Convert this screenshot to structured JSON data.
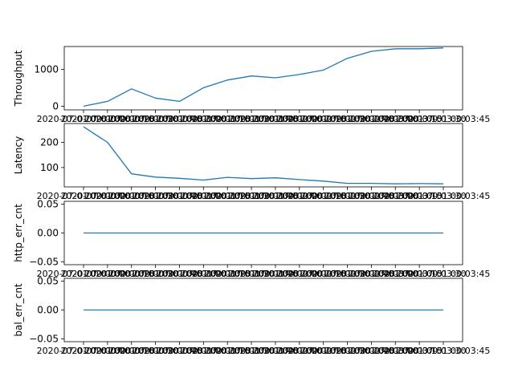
{
  "chart_data": [
    {
      "type": "line",
      "ylabel": "Throughput",
      "x": [
        "2020-07-01 00:00:00",
        "2020-07-01 00:00:15",
        "2020-07-01 00:00:30",
        "2020-07-01 00:00:45",
        "2020-07-01 00:01:00",
        "2020-07-01 00:01:15",
        "2020-07-01 00:01:30",
        "2020-07-01 00:01:45",
        "2020-07-01 00:02:00",
        "2020-07-01 00:02:15",
        "2020-07-01 00:02:30",
        "2020-07-01 00:02:45",
        "2020-07-01 00:03:00",
        "2020-07-01 00:03:15",
        "2020-07-01 00:03:30",
        "2020-07-01 00:03:45"
      ],
      "series": [
        {
          "values": [
            0,
            130,
            470,
            220,
            130,
            500,
            710,
            820,
            770,
            860,
            980,
            1300,
            1490,
            1560,
            1560,
            1580
          ]
        }
      ],
      "yticks": [
        0,
        1000
      ],
      "ylim": [
        -100,
        1620
      ],
      "color": "#1f77b4"
    },
    {
      "type": "line",
      "ylabel": "Latency",
      "x": [
        "2020-07-01 00:00:00",
        "2020-07-01 00:00:15",
        "2020-07-01 00:00:30",
        "2020-07-01 00:00:45",
        "2020-07-01 00:01:00",
        "2020-07-01 00:01:15",
        "2020-07-01 00:01:30",
        "2020-07-01 00:01:45",
        "2020-07-01 00:02:00",
        "2020-07-01 00:02:15",
        "2020-07-01 00:02:30",
        "2020-07-01 00:02:45",
        "2020-07-01 00:03:00",
        "2020-07-01 00:03:15",
        "2020-07-01 00:03:30",
        "2020-07-01 00:03:45"
      ],
      "series": [
        {
          "values": [
            262,
            200,
            75,
            62,
            57,
            50,
            61,
            56,
            59,
            52,
            46,
            37,
            37,
            35,
            36,
            35
          ]
        }
      ],
      "yticks": [
        100,
        200
      ],
      "ylim": [
        23,
        275
      ],
      "color": "#1f77b4"
    },
    {
      "type": "line",
      "ylabel": "http_err_cnt",
      "x": [
        "2020-07-01 00:00:00",
        "2020-07-01 00:00:15",
        "2020-07-01 00:00:30",
        "2020-07-01 00:00:45",
        "2020-07-01 00:01:00",
        "2020-07-01 00:01:15",
        "2020-07-01 00:01:30",
        "2020-07-01 00:01:45",
        "2020-07-01 00:02:00",
        "2020-07-01 00:02:15",
        "2020-07-01 00:02:30",
        "2020-07-01 00:02:45",
        "2020-07-01 00:03:00",
        "2020-07-01 00:03:15",
        "2020-07-01 00:03:30",
        "2020-07-01 00:03:45"
      ],
      "series": [
        {
          "values": [
            0,
            0,
            0,
            0,
            0,
            0,
            0,
            0,
            0,
            0,
            0,
            0,
            0,
            0,
            0,
            0
          ]
        }
      ],
      "yticks": [
        -0.05,
        0.0,
        0.05
      ],
      "ytick_labels": [
        "−0.05",
        "0.00",
        "0.05"
      ],
      "ylim": [
        -0.055,
        0.055
      ],
      "color": "#1f77b4"
    },
    {
      "type": "line",
      "ylabel": "bal_err_cnt",
      "x": [
        "2020-07-01 00:00:00",
        "2020-07-01 00:00:15",
        "2020-07-01 00:00:30",
        "2020-07-01 00:00:45",
        "2020-07-01 00:01:00",
        "2020-07-01 00:01:15",
        "2020-07-01 00:01:30",
        "2020-07-01 00:01:45",
        "2020-07-01 00:02:00",
        "2020-07-01 00:02:15",
        "2020-07-01 00:02:30",
        "2020-07-01 00:02:45",
        "2020-07-01 00:03:00",
        "2020-07-01 00:03:15",
        "2020-07-01 00:03:30",
        "2020-07-01 00:03:45"
      ],
      "series": [
        {
          "values": [
            0,
            0,
            0,
            0,
            0,
            0,
            0,
            0,
            0,
            0,
            0,
            0,
            0,
            0,
            0,
            0
          ]
        }
      ],
      "yticks": [
        -0.05,
        0.0,
        0.05
      ],
      "ytick_labels": [
        "−0.05",
        "0.00",
        "0.05"
      ],
      "ylim": [
        -0.055,
        0.055
      ],
      "color": "#1f77b4"
    }
  ]
}
